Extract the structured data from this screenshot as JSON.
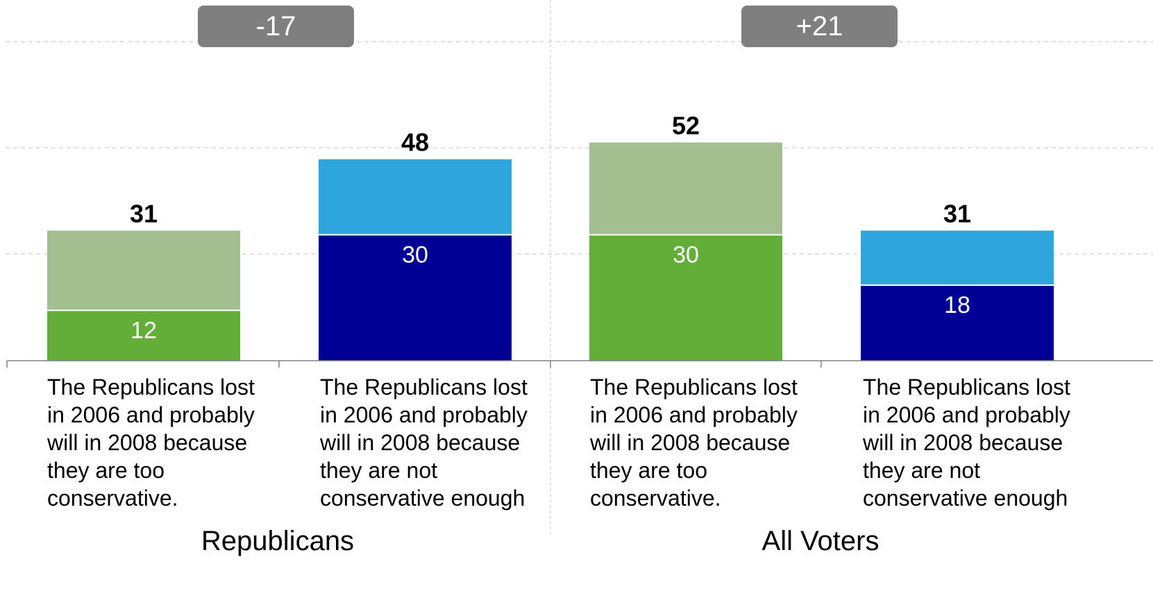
{
  "chart_data": {
    "type": "bar",
    "stacked": true,
    "ylim": [
      0,
      60
    ],
    "grid": true,
    "groups": [
      "Republicans",
      "All Voters"
    ],
    "differences": [
      "-17",
      "+21"
    ],
    "categories": [
      "The Republicans lost in 2006 and probably will in 2008 because they are too conservative.",
      "The Republicans lost in 2006 and probably will in 2008 because they are not conservative enough",
      "The Republicans lost in 2006 and probably will in 2008 because they are too conservative.",
      "The Republicans lost in 2006 and probably will in 2008 because they are not conservative enough"
    ],
    "bars": [
      {
        "group": "Republicans",
        "total": 31,
        "bottom": 12,
        "bottom_color": "#63ae38",
        "top_color": "#a3bf90"
      },
      {
        "group": "Republicans",
        "total": 48,
        "bottom": 30,
        "bottom_color": "#000094",
        "top_color": "#2ea6dd"
      },
      {
        "group": "All Voters",
        "total": 52,
        "bottom": 30,
        "bottom_color": "#63ae38",
        "top_color": "#a3bf90"
      },
      {
        "group": "All Voters",
        "total": 31,
        "bottom": 18,
        "bottom_color": "#000094",
        "top_color": "#2ea6dd"
      }
    ]
  },
  "colors": {
    "badge_bg": "#7f7f7f",
    "grid": "#c0c0c0",
    "axis": "#808080"
  }
}
